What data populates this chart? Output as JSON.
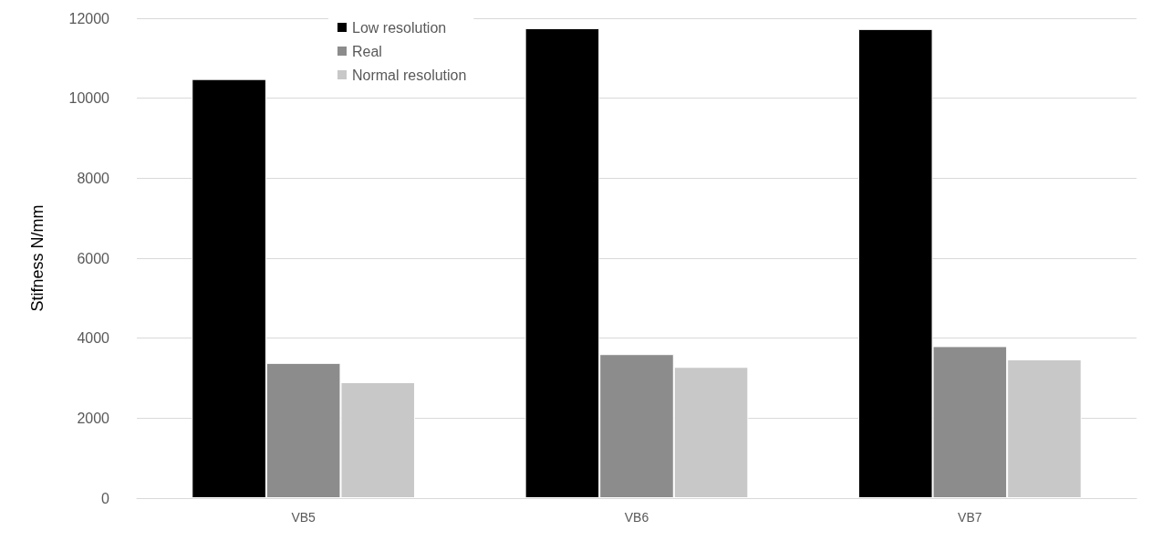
{
  "chart_data": {
    "type": "bar",
    "ylabel": "Stifness N/mm",
    "categories": [
      "VB5",
      "VB6",
      "VB7"
    ],
    "series": [
      {
        "name": "Low resolution",
        "color": "#000000",
        "values": [
          10480,
          11750,
          11730
        ]
      },
      {
        "name": "Real",
        "color": "#8c8c8c",
        "values": [
          3380,
          3600,
          3800
        ]
      },
      {
        "name": "Normal resolution",
        "color": "#c8c8c8",
        "values": [
          2900,
          3280,
          3470
        ]
      }
    ],
    "ylim": [
      0,
      12000
    ],
    "yticks": [
      0,
      2000,
      4000,
      6000,
      8000,
      10000,
      12000
    ],
    "grid": "y",
    "legend": "top"
  }
}
